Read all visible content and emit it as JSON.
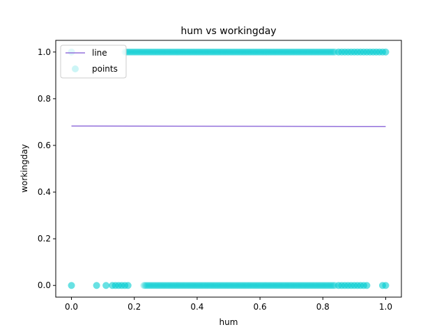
{
  "chart_data": {
    "type": "scatter",
    "title": "hum vs workingday",
    "xlabel": "hum",
    "ylabel": "workingday",
    "xlim": [
      -0.05,
      1.05
    ],
    "ylim": [
      -0.05,
      1.05
    ],
    "xticks": [
      0.0,
      0.2,
      0.4,
      0.6,
      0.8,
      1.0
    ],
    "yticks": [
      0.0,
      0.2,
      0.4,
      0.6,
      0.8,
      1.0
    ],
    "xtick_labels": [
      "0.0",
      "0.2",
      "0.4",
      "0.6",
      "0.8",
      "1.0"
    ],
    "ytick_labels": [
      "0.0",
      "0.2",
      "0.4",
      "0.6",
      "0.8",
      "1.0"
    ],
    "grid": false,
    "legend_position": "top-left",
    "series": [
      {
        "name": "line",
        "kind": "line",
        "color": "#9370db",
        "x": [
          0.0,
          1.0
        ],
        "y": [
          0.683,
          0.681
        ]
      },
      {
        "name": "points",
        "kind": "scatter",
        "color": "#00ced1",
        "opacity": 0.2,
        "clusters": [
          {
            "y": 1,
            "x": [
              0.0,
              1.0,
              0.99,
              0.98,
              0.97,
              0.96,
              0.95,
              0.94,
              0.93,
              0.92,
              0.91,
              0.9,
              0.89,
              0.88,
              0.87,
              0.86,
              0.85
            ],
            "x_range": [
              0.17,
              0.84
            ]
          },
          {
            "y": 0,
            "x": [
              0.0,
              0.08,
              0.11,
              0.13,
              0.14,
              0.15,
              0.16,
              0.17,
              0.18,
              1.0,
              0.99,
              0.94,
              0.93,
              0.92,
              0.91,
              0.9,
              0.89,
              0.88,
              0.87,
              0.86,
              0.85
            ],
            "x_range": [
              0.23,
              0.84
            ]
          }
        ]
      }
    ]
  }
}
